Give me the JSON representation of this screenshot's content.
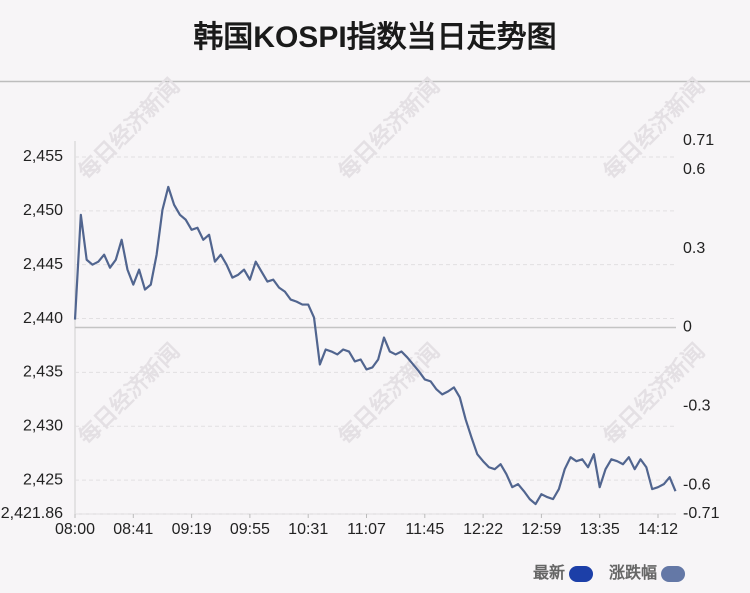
{
  "chart_data": {
    "type": "line",
    "title": "韩国KOSPI指数当日走势图",
    "watermark": "每日经济新闻",
    "categories": [
      "08:00",
      null,
      null,
      null,
      null,
      null,
      null,
      null,
      null,
      null,
      "08:41",
      null,
      null,
      null,
      null,
      null,
      null,
      null,
      null,
      null,
      "09:19",
      null,
      null,
      null,
      null,
      null,
      null,
      null,
      null,
      null,
      "09:55",
      null,
      null,
      null,
      null,
      null,
      null,
      null,
      null,
      null,
      "10:31",
      null,
      null,
      null,
      null,
      null,
      null,
      null,
      null,
      null,
      "11:07",
      null,
      null,
      null,
      null,
      null,
      null,
      null,
      null,
      null,
      "11:45",
      null,
      null,
      null,
      null,
      null,
      null,
      null,
      null,
      null,
      "12:22",
      null,
      null,
      null,
      null,
      null,
      null,
      null,
      null,
      null,
      "12:59",
      null,
      null,
      null,
      null,
      null,
      null,
      null,
      null,
      null,
      "13:35",
      null,
      null,
      null,
      null,
      null,
      null,
      null,
      null,
      null,
      "14:12",
      null,
      null,
      null
    ],
    "series": [
      {
        "name": "最新",
        "color": "#51658f",
        "values": [
          2439.91,
          2449.63,
          2445.46,
          2445.0,
          2445.28,
          2445.93,
          2444.72,
          2445.46,
          2447.31,
          2444.54,
          2443.15,
          2444.54,
          2442.69,
          2443.15,
          2445.93,
          2450.09,
          2452.22,
          2450.56,
          2449.63,
          2449.17,
          2448.24,
          2448.43,
          2447.31,
          2447.78,
          2445.28,
          2445.93,
          2445.0,
          2443.8,
          2444.07,
          2444.54,
          2443.61,
          2445.28,
          2444.35,
          2443.43,
          2443.61,
          2442.87,
          2442.5,
          2441.76,
          2441.57,
          2441.3,
          2441.3,
          2440.09,
          2435.74,
          2437.13,
          2436.94,
          2436.67,
          2437.13,
          2436.94,
          2436.02,
          2436.2,
          2435.28,
          2435.46,
          2436.2,
          2438.24,
          2436.94,
          2436.67,
          2436.94,
          2436.39,
          2435.74,
          2435.09,
          2434.35,
          2434.17,
          2433.43,
          2432.96,
          2433.24,
          2433.61,
          2432.69,
          2430.65,
          2428.98,
          2427.41,
          2426.76,
          2426.2,
          2426.02,
          2426.48,
          2425.56,
          2424.35,
          2424.63,
          2423.98,
          2423.24,
          2422.78,
          2423.7,
          2423.43,
          2423.24,
          2424.17,
          2426.02,
          2427.13,
          2426.76,
          2426.94,
          2426.2,
          2427.41,
          2424.35,
          2426.02,
          2426.94,
          2426.76,
          2426.48,
          2427.13,
          2426.02,
          2426.94,
          2426.2,
          2424.17,
          2424.35,
          2424.63,
          2425.28,
          2423.98
        ]
      }
    ],
    "legend": [
      {
        "name": "最新",
        "color": "#1c3fa8"
      },
      {
        "name": "涨跌幅",
        "color": "#6478a6"
      }
    ],
    "ylim": [
      2421.86,
      2456.48
    ],
    "yticks": [
      {
        "value": 2421.86,
        "label": "2,421.86"
      },
      {
        "value": 2425,
        "label": "2,425"
      },
      {
        "value": 2430,
        "label": "2,430"
      },
      {
        "value": 2435,
        "label": "2,435"
      },
      {
        "value": 2440,
        "label": "2,440"
      },
      {
        "value": 2445,
        "label": "2,445"
      },
      {
        "value": 2450,
        "label": "2,450"
      },
      {
        "value": 2455,
        "label": "2,455"
      }
    ],
    "y2lim": [
      -0.71,
      0.71
    ],
    "y2ticks": [
      -0.71,
      -0.6,
      -0.3,
      0,
      0.3,
      0.6,
      0.71
    ],
    "grid": true
  }
}
